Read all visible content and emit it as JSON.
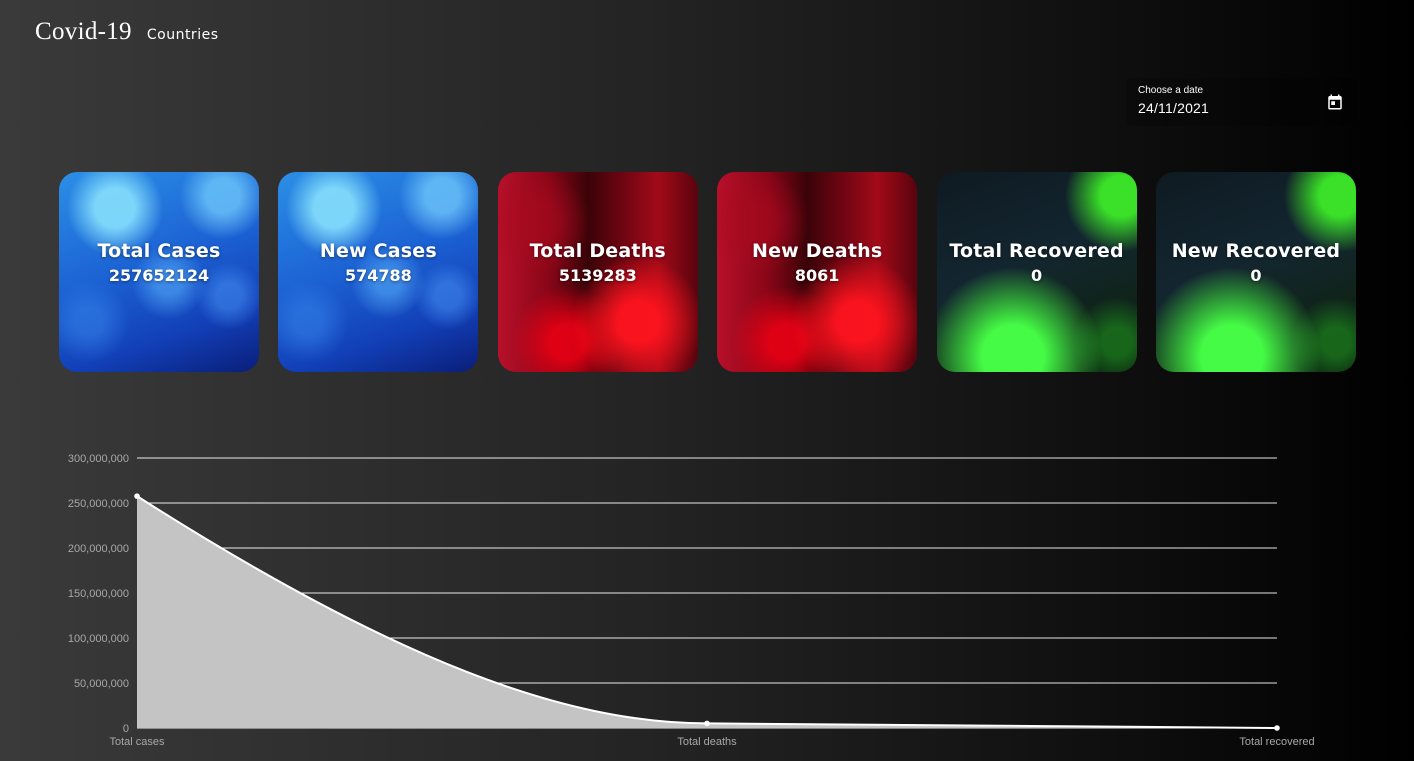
{
  "header": {
    "brand": "Covid-19",
    "nav_countries": "Countries"
  },
  "datepicker": {
    "label": "Choose a date",
    "value": "24/11/2021",
    "icon": "calendar-icon"
  },
  "cards": [
    {
      "title": "Total Cases",
      "value": "257652124",
      "theme": "blue"
    },
    {
      "title": "New Cases",
      "value": "574788",
      "theme": "blue"
    },
    {
      "title": "Total Deaths",
      "value": "5139283",
      "theme": "red"
    },
    {
      "title": "New Deaths",
      "value": "8061",
      "theme": "red"
    },
    {
      "title": "Total Recovered",
      "value": "0",
      "theme": "green"
    },
    {
      "title": "New Recovered",
      "value": "0",
      "theme": "green"
    }
  ],
  "colors": {
    "grid": "#ffffff",
    "area_fill": "#c4c4c4",
    "line": "#ffffff",
    "tick_text": "#a8a8a8"
  },
  "chart_data": {
    "type": "area",
    "categories": [
      "Total cases",
      "Total deaths",
      "Total recovered"
    ],
    "values": [
      257652124,
      5139283,
      0
    ],
    "ylim": [
      0,
      300000000
    ],
    "yticks": [
      "0",
      "50,000,000",
      "100,000,000",
      "150,000,000",
      "200,000,000",
      "250,000,000",
      "300,000,000"
    ],
    "grid": true,
    "legend": "none"
  }
}
